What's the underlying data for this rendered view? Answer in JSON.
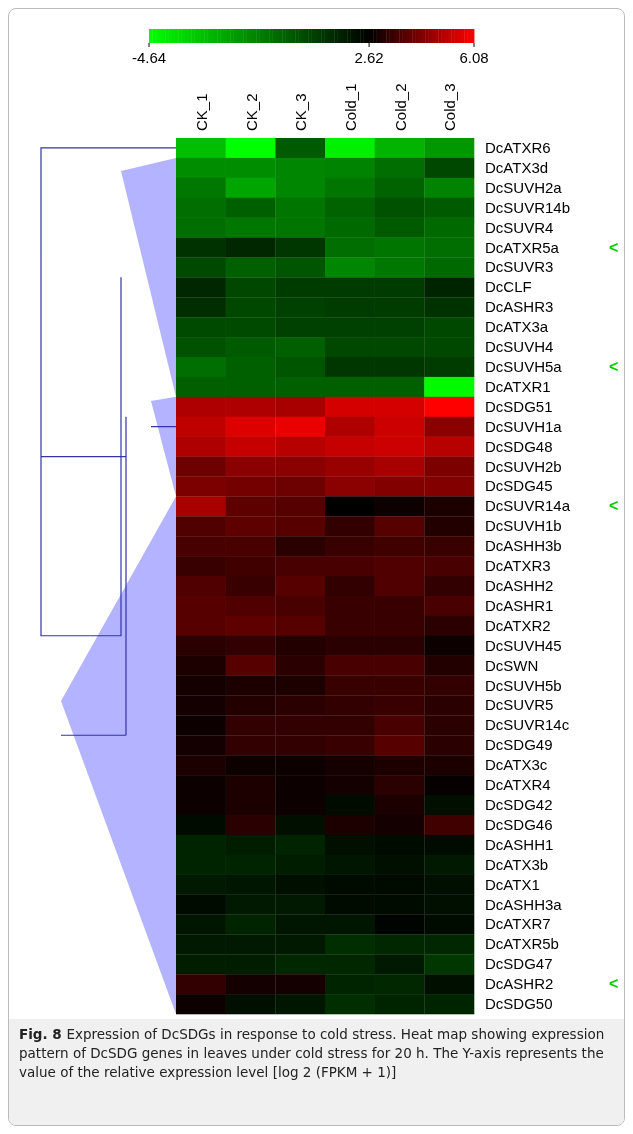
{
  "chart_data": {
    "type": "heatmap",
    "categories": [
      "CK_1",
      "CK_2",
      "CK_3",
      "Cold_1",
      "Cold_2",
      "Cold_3"
    ],
    "y_categories": [
      "DcATXR6",
      "DcATX3d",
      "DcSUVH2a",
      "DcSUVR14b",
      "DcSUVR4",
      "DcATXR5a",
      "DcSUVR3",
      "DcCLF",
      "DcASHR3",
      "DcATX3a",
      "DcSUVH4",
      "DcSUVH5a",
      "DcATXR1",
      "DcSDG51",
      "DcSUVH1a",
      "DcSDG48",
      "DcSUVH2b",
      "DcSDG45",
      "DcSUVR14a",
      "DcSUVH1b",
      "DcASHH3b",
      "DcATXR3",
      "DcASHH2",
      "DcASHR1",
      "DcATXR2",
      "DcSUVH45",
      "DcSWN",
      "DcSUVH5b",
      "DcSUVR5",
      "DcSUVR14c",
      "DcSDG49",
      "DcATX3c",
      "DcATXR4",
      "DcSDG42",
      "DcSDG46",
      "DcASHH1",
      "DcATX3b",
      "DcATX1",
      "DcASHH3a",
      "DcATXR7",
      "DcATXR5b",
      "DcSDG47",
      "DcASHR2",
      "DcSDG50"
    ],
    "y2_categories": [
      null,
      null,
      null,
      null,
      null,
      "<",
      null,
      null,
      null,
      null,
      null,
      "<",
      null,
      null,
      null,
      null,
      null,
      null,
      "<",
      null,
      null,
      null,
      null,
      null,
      null,
      null,
      null,
      null,
      null,
      null,
      null,
      null,
      null,
      null,
      null,
      null,
      null,
      null,
      null,
      null,
      null,
      null,
      "<",
      null
    ],
    "cells": [
      [
        -2.8,
        -4.64,
        0.06,
        -4.2,
        -2.5,
        -1.7
      ],
      [
        -1.4,
        -1.4,
        -1.2,
        -1.1,
        -0.5,
        0.6
      ],
      [
        -0.8,
        -2.1,
        -1.2,
        -0.7,
        -0.2,
        -1.1
      ],
      [
        -0.5,
        -0.1,
        -0.7,
        -0.2,
        0.3,
        0.06
      ],
      [
        -0.5,
        -0.8,
        -0.7,
        -0.4,
        0.06,
        -0.4
      ],
      [
        1.2,
        1.5,
        1.05,
        -0.5,
        -0.7,
        -0.5
      ],
      [
        0.5,
        -0.1,
        0.2,
        -1.2,
        -0.8,
        -0.4
      ],
      [
        1.5,
        0.6,
        0.9,
        0.9,
        0.9,
        1.6
      ],
      [
        1.3,
        0.6,
        0.8,
        0.9,
        0.9,
        1.2
      ],
      [
        0.5,
        0.5,
        0.8,
        0.8,
        0.8,
        0.6
      ],
      [
        0.3,
        0.06,
        -0.1,
        0.6,
        0.6,
        0.6
      ],
      [
        -0.5,
        -0.1,
        0.2,
        1.05,
        1.05,
        0.9
      ],
      [
        -0.1,
        -0.1,
        -0.1,
        -0.1,
        -0.1,
        -4.5
      ],
      [
        5.0,
        5.0,
        4.9,
        5.5,
        5.5,
        6.08
      ],
      [
        5.2,
        5.6,
        5.8,
        5.0,
        5.4,
        4.5
      ],
      [
        5.0,
        5.3,
        5.1,
        5.3,
        5.4,
        5.1
      ],
      [
        4.1,
        4.5,
        4.5,
        4.7,
        4.9,
        4.3
      ],
      [
        4.3,
        4.2,
        4.1,
        4.5,
        4.4,
        4.4
      ],
      [
        4.9,
        3.9,
        3.8,
        2.62,
        2.8,
        3.0
      ],
      [
        3.7,
        3.9,
        3.8,
        3.3,
        3.8,
        3.1
      ],
      [
        3.6,
        3.6,
        3.2,
        3.4,
        3.5,
        3.4
      ],
      [
        3.4,
        3.5,
        3.6,
        3.6,
        3.7,
        3.6
      ],
      [
        3.7,
        3.4,
        3.8,
        3.3,
        3.7,
        3.3
      ],
      [
        3.8,
        3.7,
        3.6,
        3.4,
        3.4,
        3.6
      ],
      [
        3.8,
        3.9,
        3.8,
        3.4,
        3.4,
        3.2
      ],
      [
        3.2,
        3.3,
        3.1,
        3.2,
        3.2,
        2.8
      ],
      [
        3.0,
        3.8,
        3.2,
        3.6,
        3.6,
        3.1
      ],
      [
        2.9,
        3.0,
        3.0,
        3.4,
        3.4,
        3.3
      ],
      [
        2.9,
        3.1,
        3.2,
        3.3,
        3.4,
        3.2
      ],
      [
        2.8,
        3.3,
        3.3,
        3.3,
        3.6,
        3.2
      ],
      [
        2.9,
        3.3,
        3.3,
        3.4,
        3.8,
        3.2
      ],
      [
        3.0,
        2.8,
        2.8,
        2.9,
        3.0,
        3.0
      ],
      [
        2.8,
        3.0,
        2.8,
        2.9,
        3.2,
        2.7
      ],
      [
        2.8,
        3.0,
        2.8,
        2.3,
        3.0,
        2.2
      ],
      [
        2.3,
        3.2,
        2.2,
        3.0,
        2.9,
        3.5
      ],
      [
        1.6,
        1.8,
        1.6,
        2.2,
        2.3,
        2.3
      ],
      [
        1.6,
        1.6,
        1.8,
        2.0,
        2.2,
        1.9
      ],
      [
        1.9,
        2.0,
        2.2,
        2.3,
        2.3,
        2.2
      ],
      [
        2.3,
        1.9,
        1.9,
        2.3,
        2.3,
        2.2
      ],
      [
        2.0,
        1.6,
        2.0,
        2.0,
        2.5,
        2.3
      ],
      [
        1.9,
        1.9,
        1.9,
        1.3,
        1.5,
        1.5
      ],
      [
        1.8,
        1.8,
        1.5,
        1.5,
        1.9,
        1.05
      ],
      [
        3.3,
        2.9,
        2.9,
        1.6,
        1.5,
        2.2
      ],
      [
        2.8,
        2.2,
        2.0,
        1.3,
        1.6,
        1.6
      ]
    ],
    "clim": [
      -4.64,
      6.08
    ],
    "clabel": null,
    "cticks": [
      -4.64,
      2.62,
      6.08
    ],
    "annotations": [
      "Fig. 8",
      "Expression of DcSDGs in response to cold stress. Heat map showing expression pattern of DcSDG genes in leaves under cold stress for 20 h. The Y-axis represents the value of the relative expression level [log 2 (FPKM + 1)]"
    ]
  }
}
